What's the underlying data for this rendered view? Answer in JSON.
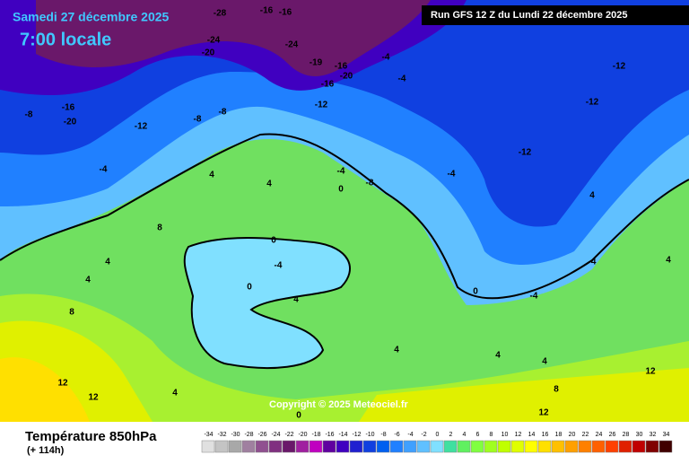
{
  "header": {
    "date": "Samedi 27 décembre 2025",
    "time": "7:00 locale",
    "run": "Run GFS 12 Z du Lundi 22 décembre 2025"
  },
  "copyright": "Copyright © 2025 Meteociel.fr",
  "footer": {
    "title": "Température 850hPa",
    "lead": "(+ 114h)"
  },
  "legend": {
    "levels": [
      -34,
      -32,
      -30,
      -28,
      -26,
      -24,
      -22,
      -20,
      -18,
      -16,
      -14,
      -12,
      -10,
      -8,
      -6,
      -4,
      -2,
      0,
      2,
      4,
      6,
      8,
      10,
      12,
      14,
      16,
      18,
      20,
      22,
      24,
      26,
      28,
      30,
      32,
      34
    ],
    "colors": [
      "#e0e0e0",
      "#c4c4c4",
      "#a8a8a8",
      "#a080a0",
      "#905090",
      "#803080",
      "#6a186a",
      "#a020a0",
      "#c000c0",
      "#6000a0",
      "#4000c0",
      "#2020d0",
      "#1040e0",
      "#0060f0",
      "#2080ff",
      "#40a0ff",
      "#60c0ff",
      "#80e0ff",
      "#40e0a0",
      "#60f060",
      "#80ff40",
      "#a0ff20",
      "#c0ff00",
      "#e0ff00",
      "#ffff00",
      "#ffe000",
      "#ffc000",
      "#ffa000",
      "#ff8000",
      "#ff6000",
      "#ff4000",
      "#e02000",
      "#c00000",
      "#800000",
      "#400000"
    ]
  },
  "map_labels": [
    -28,
    -16,
    -16,
    -24,
    -20,
    -24,
    -19,
    -16,
    -20,
    -16,
    -4,
    -4,
    -12,
    -12,
    -12,
    -8,
    -12,
    -16,
    -20,
    -12,
    -8,
    -8,
    -4,
    4,
    4,
    -4,
    0,
    -8,
    -4,
    0,
    -4,
    0,
    4,
    8,
    4,
    4,
    8,
    12,
    12,
    4,
    4,
    4,
    8,
    12,
    12,
    4,
    -4,
    4,
    0,
    -4,
    4,
    0
  ]
}
